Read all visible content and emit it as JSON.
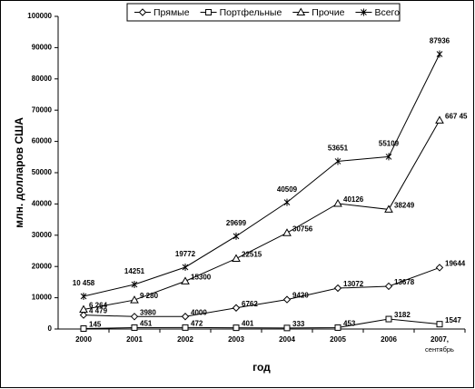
{
  "chart_data": {
    "type": "line",
    "x_label": "год",
    "y_label": "млн. долларов США",
    "categories": [
      "2000",
      "2001",
      "2002",
      "2003",
      "2004",
      "2005",
      "2006",
      "2007, сентябрь"
    ],
    "ylim": [
      0,
      100000
    ],
    "yticks": [
      0,
      10000,
      20000,
      30000,
      40000,
      50000,
      60000,
      70000,
      80000,
      90000,
      100000
    ],
    "grid": false,
    "legend": "top",
    "series": [
      {
        "name": "Прямые",
        "color": "#000000",
        "marker": "diamond",
        "values": [
          4479,
          3980,
          4000,
          6762,
          9420,
          13072,
          13678,
          19644
        ],
        "value_labels": [
          "4 479",
          "3980",
          "4000",
          "6762",
          "9420",
          "13072",
          "13678",
          "19644"
        ]
      },
      {
        "name": "Портфельные",
        "color": "#000000",
        "marker": "square",
        "values": [
          145,
          451,
          472,
          401,
          333,
          453,
          3182,
          1547
        ]
      },
      {
        "name": "Прочие",
        "color": "#000000",
        "marker": "triangle",
        "values": [
          6264,
          9280,
          15300,
          22515,
          30756,
          40126,
          38249,
          66745
        ],
        "value_labels": [
          "6 264",
          "9 280",
          "15300",
          "22515",
          "30756",
          "40126",
          "38249",
          "667 45"
        ]
      },
      {
        "name": "Всего",
        "color": "#000000",
        "marker": "star",
        "values": [
          10458,
          14251,
          19772,
          29699,
          40509,
          53651,
          55109,
          87936
        ],
        "value_labels": [
          "10 458",
          "14251",
          "19772",
          "29699",
          "40509",
          "53651",
          "55109",
          "87936"
        ]
      }
    ]
  }
}
